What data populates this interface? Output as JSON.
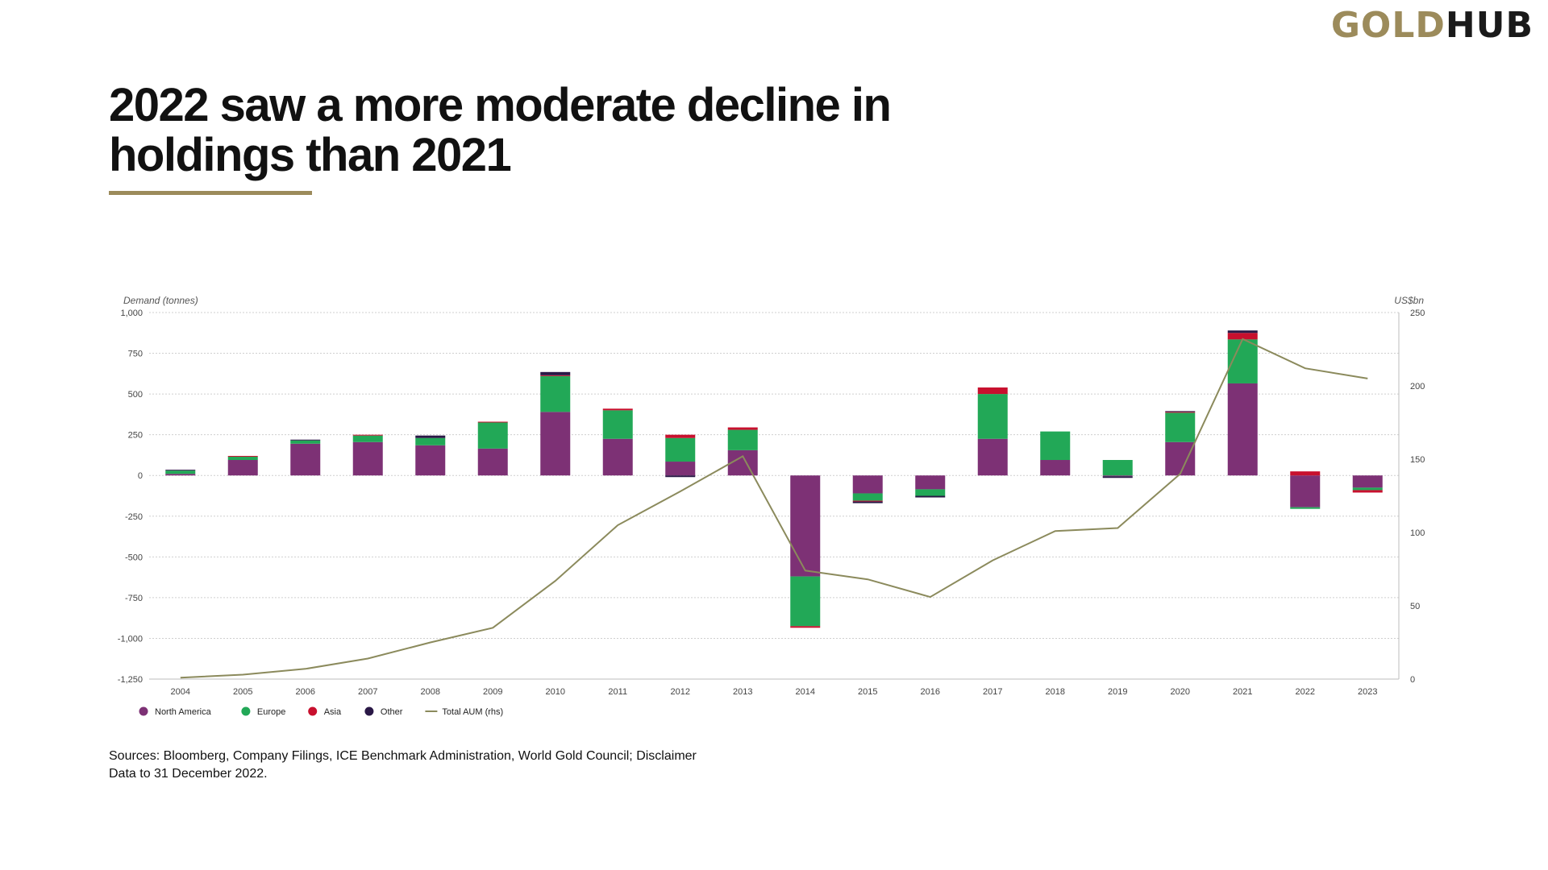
{
  "logo": {
    "part1": "GOLD",
    "part2": "HUB"
  },
  "title": {
    "line1": "2022 saw a more moderate decline in",
    "line2": "holdings than 2021"
  },
  "sources": {
    "line1": "Sources: Bloomberg, Company Filings, ICE Benchmark Administration, World Gold Council; Disclaimer",
    "line2": "Data to 31 December 2022."
  },
  "colors": {
    "accent": "#9c8b5b",
    "north_america": "#7d3175",
    "europe": "#22a857",
    "asia": "#c8102e",
    "other": "#2a1846",
    "aum_line": "#8b8a5c"
  },
  "chart_data": {
    "type": "bar",
    "stacked": true,
    "left_axis_label": "Demand (tonnes)",
    "right_axis_label": "US$bn",
    "ylim": [
      -1250,
      1000
    ],
    "y_ticks": [
      1000,
      750,
      500,
      250,
      0,
      -250,
      -500,
      -750,
      -1000,
      -1250
    ],
    "y_tick_labels": [
      "1,000",
      "750",
      "500",
      "250",
      "0",
      "-250",
      "-500",
      "-750",
      "-1,000",
      "-1,250"
    ],
    "y2lim": [
      0,
      250
    ],
    "y2_ticks": [
      250,
      200,
      150,
      100,
      50,
      0
    ],
    "y2_tick_labels": [
      "250",
      "200",
      "150",
      "100",
      "50",
      "0"
    ],
    "categories": [
      "2004",
      "2005",
      "2006",
      "2007",
      "2008",
      "2009",
      "2010",
      "2011",
      "2012",
      "2013",
      "2014",
      "2015",
      "2016",
      "2017",
      "2018",
      "2019",
      "2020",
      "2021",
      "2022",
      "2023"
    ],
    "series": [
      {
        "name": "North America",
        "key": "north_america",
        "values": [
          10,
          95,
          195,
          205,
          185,
          165,
          390,
          225,
          85,
          155,
          -620,
          -110,
          -85,
          225,
          95,
          -5,
          205,
          565,
          -195,
          -75
        ]
      },
      {
        "name": "Europe",
        "key": "europe",
        "values": [
          20,
          20,
          20,
          40,
          45,
          160,
          220,
          175,
          145,
          125,
          -305,
          -45,
          -40,
          275,
          175,
          95,
          180,
          270,
          -10,
          -15
        ]
      },
      {
        "name": "Asia",
        "key": "asia",
        "values": [
          0,
          5,
          0,
          5,
          0,
          5,
          5,
          10,
          20,
          15,
          -10,
          -5,
          0,
          40,
          0,
          0,
          5,
          40,
          25,
          -15
        ]
      },
      {
        "name": "Other",
        "key": "other",
        "values": [
          5,
          0,
          5,
          0,
          15,
          0,
          20,
          0,
          -10,
          0,
          0,
          -10,
          -10,
          0,
          0,
          -10,
          5,
          15,
          0,
          0
        ]
      }
    ],
    "line_series": {
      "name": "Total AUM (rhs)",
      "key": "aum_line",
      "axis": "right",
      "values": [
        1,
        3,
        7,
        14,
        25,
        35,
        67,
        105,
        128,
        152,
        74,
        68,
        56,
        81,
        101,
        103,
        140,
        232,
        212,
        205
      ]
    },
    "legend": [
      "North America",
      "Europe",
      "Asia",
      "Other",
      "Total AUM (rhs)"
    ],
    "legend_position": "bottom-left",
    "grid": true
  }
}
